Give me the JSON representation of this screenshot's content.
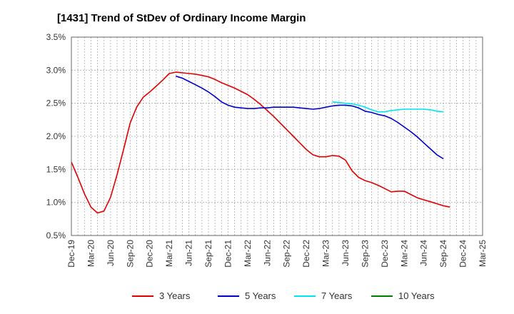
{
  "chart_data": {
    "type": "line",
    "title": "[1431]  Trend of StDev of Ordinary Income Margin",
    "xlabel": "",
    "ylabel": "",
    "x_ticks": [
      "Dec-19",
      "Mar-20",
      "Jun-20",
      "Sep-20",
      "Dec-20",
      "Mar-21",
      "Jun-21",
      "Sep-21",
      "Dec-21",
      "Mar-22",
      "Jun-22",
      "Sep-22",
      "Dec-22",
      "Mar-23",
      "Jun-23",
      "Sep-23",
      "Dec-23",
      "Mar-24",
      "Jun-24",
      "Sep-24",
      "Dec-24",
      "Mar-25"
    ],
    "y_ticks": [
      "0.5%",
      "1.0%",
      "1.5%",
      "2.0%",
      "2.5%",
      "3.0%",
      "3.5%"
    ],
    "ylim": [
      0.5,
      3.5
    ],
    "grid": true,
    "legend_position": "bottom",
    "series": [
      {
        "name": "3 Years",
        "color": "#e00000",
        "points": [
          [
            0,
            1.61
          ],
          [
            1,
            1.38
          ],
          [
            2,
            1.13
          ],
          [
            3,
            0.93
          ],
          [
            4,
            0.84
          ],
          [
            5,
            0.87
          ],
          [
            6,
            1.08
          ],
          [
            7,
            1.42
          ],
          [
            8,
            1.8
          ],
          [
            9,
            2.2
          ],
          [
            10,
            2.44
          ],
          [
            11,
            2.59
          ],
          [
            12,
            2.67
          ],
          [
            13,
            2.76
          ],
          [
            14,
            2.85
          ],
          [
            15,
            2.95
          ],
          [
            16,
            2.97
          ],
          [
            17,
            2.96
          ],
          [
            18,
            2.95
          ],
          [
            19,
            2.94
          ],
          [
            20,
            2.92
          ],
          [
            21,
            2.9
          ],
          [
            22,
            2.86
          ],
          [
            23,
            2.81
          ],
          [
            24,
            2.77
          ],
          [
            25,
            2.73
          ],
          [
            26,
            2.68
          ],
          [
            27,
            2.63
          ],
          [
            28,
            2.56
          ],
          [
            29,
            2.48
          ],
          [
            30,
            2.39
          ],
          [
            31,
            2.3
          ],
          [
            32,
            2.2
          ],
          [
            33,
            2.1
          ],
          [
            34,
            2.0
          ],
          [
            35,
            1.9
          ],
          [
            36,
            1.8
          ],
          [
            37,
            1.72
          ],
          [
            38,
            1.69
          ],
          [
            39,
            1.69
          ],
          [
            40,
            1.71
          ],
          [
            41,
            1.7
          ],
          [
            42,
            1.64
          ],
          [
            43,
            1.48
          ],
          [
            44,
            1.38
          ],
          [
            45,
            1.33
          ],
          [
            46,
            1.3
          ],
          [
            47,
            1.26
          ],
          [
            48,
            1.21
          ],
          [
            49,
            1.16
          ],
          [
            50,
            1.17
          ],
          [
            51,
            1.17
          ],
          [
            52,
            1.12
          ],
          [
            53,
            1.07
          ],
          [
            54,
            1.04
          ],
          [
            55,
            1.01
          ],
          [
            56,
            0.98
          ],
          [
            57,
            0.95
          ],
          [
            58,
            0.93
          ]
        ]
      },
      {
        "name": "5 Years",
        "color": "#0000cc",
        "points": [
          [
            16,
            2.91
          ],
          [
            17,
            2.88
          ],
          [
            18,
            2.83
          ],
          [
            19,
            2.78
          ],
          [
            20,
            2.73
          ],
          [
            21,
            2.67
          ],
          [
            22,
            2.6
          ],
          [
            23,
            2.52
          ],
          [
            24,
            2.47
          ],
          [
            25,
            2.44
          ],
          [
            26,
            2.43
          ],
          [
            27,
            2.42
          ],
          [
            28,
            2.42
          ],
          [
            29,
            2.43
          ],
          [
            30,
            2.43
          ],
          [
            31,
            2.44
          ],
          [
            32,
            2.44
          ],
          [
            33,
            2.44
          ],
          [
            34,
            2.44
          ],
          [
            35,
            2.43
          ],
          [
            36,
            2.42
          ],
          [
            37,
            2.41
          ],
          [
            38,
            2.42
          ],
          [
            39,
            2.44
          ],
          [
            40,
            2.46
          ],
          [
            41,
            2.47
          ],
          [
            42,
            2.47
          ],
          [
            43,
            2.46
          ],
          [
            44,
            2.43
          ],
          [
            45,
            2.38
          ],
          [
            46,
            2.36
          ],
          [
            47,
            2.33
          ],
          [
            48,
            2.31
          ],
          [
            49,
            2.27
          ],
          [
            50,
            2.21
          ],
          [
            51,
            2.14
          ],
          [
            52,
            2.07
          ],
          [
            53,
            1.99
          ],
          [
            54,
            1.9
          ],
          [
            55,
            1.81
          ],
          [
            56,
            1.72
          ],
          [
            57,
            1.66
          ]
        ]
      },
      {
        "name": "7 Years",
        "color": "#00e5ee",
        "points": [
          [
            40,
            2.52
          ],
          [
            41,
            2.51
          ],
          [
            42,
            2.5
          ],
          [
            43,
            2.49
          ],
          [
            44,
            2.47
          ],
          [
            45,
            2.44
          ],
          [
            46,
            2.4
          ],
          [
            47,
            2.37
          ],
          [
            48,
            2.37
          ],
          [
            49,
            2.39
          ],
          [
            50,
            2.4
          ],
          [
            51,
            2.41
          ],
          [
            52,
            2.41
          ],
          [
            53,
            2.41
          ],
          [
            54,
            2.41
          ],
          [
            55,
            2.4
          ],
          [
            56,
            2.38
          ],
          [
            57,
            2.37
          ]
        ]
      },
      {
        "name": "10 Years",
        "color": "#008000",
        "points": []
      }
    ]
  }
}
